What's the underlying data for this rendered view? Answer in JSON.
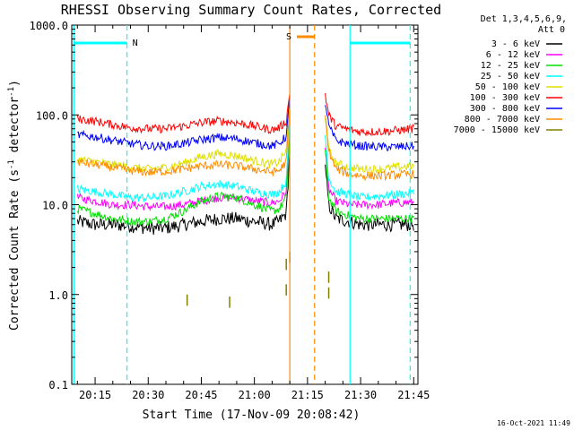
{
  "chart_data": {
    "type": "line",
    "title": "RHESSI Observing Summary Count Rates, Corrected",
    "xlabel": "Start Time (17-Nov-09 20:08:42)",
    "ylabel": "Corrected Count Rate (s⁻¹ detector⁻¹)",
    "ylabel_parts": {
      "main": "Corrected Count Rate (s",
      "exp1": "-1",
      "mid": " detector",
      "exp2": "-1",
      "end": ")"
    },
    "yscale": "log",
    "ylim": [
      0.1,
      1000
    ],
    "xlim_minutes": [
      20.14,
      21.77
    ],
    "yticks": [
      {
        "value": 1000,
        "label": "1000.0"
      },
      {
        "value": 100,
        "label": "100.0"
      },
      {
        "value": 10,
        "label": "10.0"
      },
      {
        "value": 1,
        "label": "1.0"
      },
      {
        "value": 0.1,
        "label": "0.1"
      }
    ],
    "xticks": [
      {
        "value": "20:15",
        "label": "20:15"
      },
      {
        "value": "20:30",
        "label": "20:30"
      },
      {
        "value": "20:45",
        "label": "20:45"
      },
      {
        "value": "21:00",
        "label": "21:00"
      },
      {
        "value": "21:15",
        "label": "21:15"
      },
      {
        "value": "21:30",
        "label": "21:30"
      },
      {
        "value": "21:45",
        "label": "21:45"
      }
    ],
    "legend_header": [
      "Det 1,3,4,5,6,9,",
      "Att 0"
    ],
    "legend_position": "right",
    "timestamp": "16-Oct-2021 11:49",
    "gap": {
      "start": "21:10",
      "end": "21:20"
    },
    "series": [
      {
        "name": "3 - 6 keV",
        "color": "#000000",
        "times": [
          "20:10",
          "20:15",
          "20:20",
          "20:25",
          "20:30",
          "20:35",
          "20:40",
          "20:45",
          "20:50",
          "20:55",
          "21:00",
          "21:05",
          "21:07",
          "21:09",
          "21:10",
          "21:20",
          "21:21",
          "21:23",
          "21:27",
          "21:30",
          "21:35",
          "21:40",
          "21:45"
        ],
        "values": [
          6.5,
          6.0,
          6.0,
          5.8,
          5.5,
          5.5,
          6.0,
          6.5,
          7.0,
          7.0,
          6.5,
          6.0,
          6.5,
          8.0,
          40,
          25,
          10,
          7.0,
          6.5,
          6.0,
          6.0,
          6.0,
          6.0
        ]
      },
      {
        "name": "6 - 12 keV",
        "color": "#ff00ff",
        "times": [
          "20:10",
          "20:15",
          "20:20",
          "20:25",
          "20:30",
          "20:35",
          "20:40",
          "20:45",
          "20:50",
          "20:55",
          "21:00",
          "21:05",
          "21:07",
          "21:09",
          "21:10",
          "21:20",
          "21:21",
          "21:23",
          "21:27",
          "21:30",
          "21:35",
          "21:40",
          "21:45"
        ],
        "values": [
          12,
          11,
          10,
          10,
          9.5,
          9.5,
          10,
          11,
          12,
          12,
          11,
          10.5,
          11,
          14,
          70,
          45,
          15,
          11,
          10,
          10,
          10,
          10.5,
          10.5
        ]
      },
      {
        "name": "12 - 25 keV",
        "color": "#00e000",
        "times": [
          "20:10",
          "20:15",
          "20:20",
          "20:25",
          "20:30",
          "20:35",
          "20:40",
          "20:45",
          "20:50",
          "20:55",
          "21:00",
          "21:05",
          "21:07",
          "21:09",
          "21:10",
          "21:20",
          "21:21",
          "21:23",
          "21:27",
          "21:30",
          "21:35",
          "21:40",
          "21:45"
        ],
        "values": [
          9.0,
          8.0,
          7.0,
          6.5,
          6.5,
          7.0,
          8.5,
          11,
          12.5,
          12,
          10,
          8.5,
          9,
          12,
          60,
          40,
          12,
          8.5,
          7.5,
          7.0,
          7.0,
          7.0,
          7.0
        ]
      },
      {
        "name": "25 - 50 keV",
        "color": "#00ffff",
        "times": [
          "20:10",
          "20:15",
          "20:20",
          "20:25",
          "20:30",
          "20:35",
          "20:40",
          "20:45",
          "20:50",
          "20:55",
          "21:00",
          "21:05",
          "21:07",
          "21:09",
          "21:10",
          "21:20",
          "21:21",
          "21:23",
          "21:27",
          "21:30",
          "21:35",
          "21:40",
          "21:45"
        ],
        "values": [
          15,
          14,
          13,
          12,
          12,
          12.5,
          14,
          16,
          17,
          16,
          14,
          13,
          14,
          18,
          90,
          60,
          20,
          14,
          13,
          12,
          12.5,
          13,
          13.5
        ]
      },
      {
        "name": "50 - 100 keV",
        "color": "#e0e000",
        "times": [
          "20:10",
          "20:15",
          "20:20",
          "20:25",
          "20:30",
          "20:35",
          "20:40",
          "20:45",
          "20:50",
          "20:55",
          "21:00",
          "21:05",
          "21:07",
          "21:09",
          "21:10",
          "21:20",
          "21:21",
          "21:23",
          "21:27",
          "21:30",
          "21:35",
          "21:40",
          "21:45"
        ],
        "values": [
          32,
          30,
          28,
          26,
          25,
          26,
          29,
          34,
          37,
          35,
          31,
          28,
          30,
          40,
          150,
          100,
          40,
          29,
          26,
          25,
          25,
          26,
          27
        ]
      },
      {
        "name": "100 - 300 keV",
        "color": "#ff0000",
        "times": [
          "20:10",
          "20:15",
          "20:20",
          "20:25",
          "20:30",
          "20:35",
          "20:40",
          "20:45",
          "20:50",
          "20:55",
          "21:00",
          "21:05",
          "21:07",
          "21:09",
          "21:10",
          "21:20",
          "21:21",
          "21:23",
          "21:27",
          "21:30",
          "21:35",
          "21:40",
          "21:45"
        ],
        "values": [
          90,
          85,
          78,
          72,
          70,
          70,
          75,
          82,
          86,
          82,
          75,
          68,
          72,
          85,
          180,
          170,
          100,
          75,
          68,
          65,
          65,
          67,
          70
        ]
      },
      {
        "name": "300 - 800 keV",
        "color": "#0000ff",
        "times": [
          "20:10",
          "20:15",
          "20:20",
          "20:25",
          "20:30",
          "20:35",
          "20:40",
          "20:45",
          "20:50",
          "20:55",
          "21:00",
          "21:05",
          "21:07",
          "21:09",
          "21:10",
          "21:20",
          "21:21",
          "21:23",
          "21:27",
          "21:30",
          "21:35",
          "21:40",
          "21:45"
        ],
        "values": [
          60,
          57,
          52,
          48,
          45,
          45,
          48,
          53,
          56,
          54,
          49,
          45,
          48,
          58,
          150,
          140,
          75,
          52,
          47,
          45,
          44,
          44,
          45
        ]
      },
      {
        "name": "800 - 7000 keV",
        "color": "#ff8c00",
        "times": [
          "20:10",
          "20:15",
          "20:20",
          "20:25",
          "20:30",
          "20:35",
          "20:40",
          "20:45",
          "20:50",
          "20:55",
          "21:00",
          "21:05",
          "21:07",
          "21:09",
          "21:10",
          "21:20",
          "21:21",
          "21:23",
          "21:27",
          "21:30",
          "21:35",
          "21:40",
          "21:45"
        ],
        "values": [
          30,
          28,
          26,
          24,
          23,
          23.5,
          25,
          27,
          28,
          27,
          25,
          23,
          24,
          30,
          120,
          100,
          40,
          25,
          22,
          21,
          21,
          21.5,
          22
        ]
      },
      {
        "name": "7000 - 15000 keV",
        "color": "#808000",
        "times": [
          "20:41",
          "20:53",
          "21:09",
          "21:09",
          "21:10",
          "21:21",
          "21:21"
        ],
        "values": [
          1.0,
          0.95,
          1.3,
          2.5,
          3.0,
          1.2,
          1.8
        ]
      }
    ],
    "annotations": [
      {
        "label": "N",
        "color": "#00ffff",
        "bars": [
          {
            "start": "20:09",
            "end": "20:24"
          },
          {
            "start": "21:27",
            "end": "21:44"
          }
        ]
      },
      {
        "label": "S",
        "color": "#ff8c00",
        "bars": [
          {
            "start": "21:12",
            "end": "21:17"
          }
        ]
      }
    ],
    "markers": [
      {
        "time": "20:09",
        "color": "#00ffff",
        "style": "solid"
      },
      {
        "time": "20:24",
        "color": "#00ffff",
        "style": "dashed"
      },
      {
        "time": "21:10",
        "color": "#ff8c00",
        "style": "solid"
      },
      {
        "time": "21:17",
        "color": "#ff8c00",
        "style": "dashed"
      },
      {
        "time": "21:27",
        "color": "#00ffff",
        "style": "solid"
      },
      {
        "time": "21:44",
        "color": "#00ffff",
        "style": "dashed"
      }
    ]
  }
}
